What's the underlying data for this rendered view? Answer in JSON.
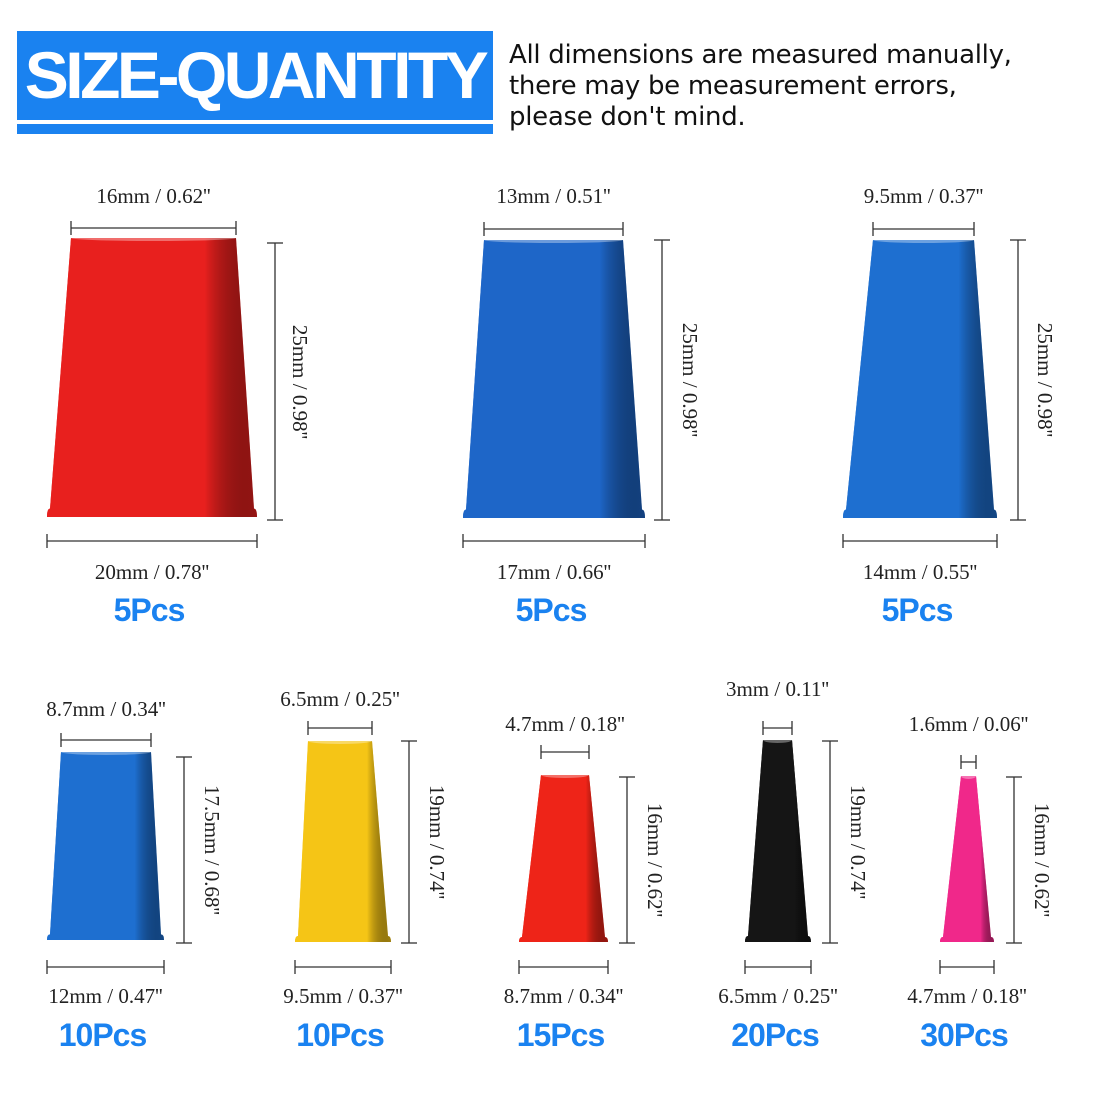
{
  "header": {
    "title": "SIZE-QUANTITY",
    "note": "All dimensions are measured manually,\nthere may be measurement errors,\nplease don't mind.",
    "accent_color": "#1a82f0"
  },
  "items": [
    {
      "top": "16mm / 0.62''",
      "height": "25mm / 0.98''",
      "bottom": "20mm / 0.78''",
      "qty": "5Pcs",
      "color": "#e8201e"
    },
    {
      "top": "13mm / 0.51''",
      "height": "25mm / 0.98''",
      "bottom": "17mm / 0.66''",
      "qty": "5Pcs",
      "color": "#1e66c8"
    },
    {
      "top": "9.5mm / 0.37''",
      "height": "25mm / 0.98''",
      "bottom": "14mm / 0.55''",
      "qty": "5Pcs",
      "color": "#1e6fd0"
    },
    {
      "top": "8.7mm / 0.34''",
      "height": "17.5mm / 0.68''",
      "bottom": "12mm / 0.47''",
      "qty": "10Pcs",
      "color": "#1e6fd0"
    },
    {
      "top": "6.5mm / 0.25''",
      "height": "19mm / 0.74''",
      "bottom": "9.5mm / 0.37''",
      "qty": "10Pcs",
      "color": "#f5c516"
    },
    {
      "top": "4.7mm / 0.18''",
      "height": "16mm / 0.62''",
      "bottom": "8.7mm / 0.34''",
      "qty": "15Pcs",
      "color": "#ee2418"
    },
    {
      "top": "3mm / 0.11''",
      "height": "19mm / 0.74''",
      "bottom": "6.5mm / 0.25''",
      "qty": "20Pcs",
      "color": "#151515"
    },
    {
      "top": "1.6mm / 0.06''",
      "height": "16mm / 0.62''",
      "bottom": "4.7mm / 0.18''",
      "qty": "30Pcs",
      "color": "#f0288a"
    }
  ]
}
